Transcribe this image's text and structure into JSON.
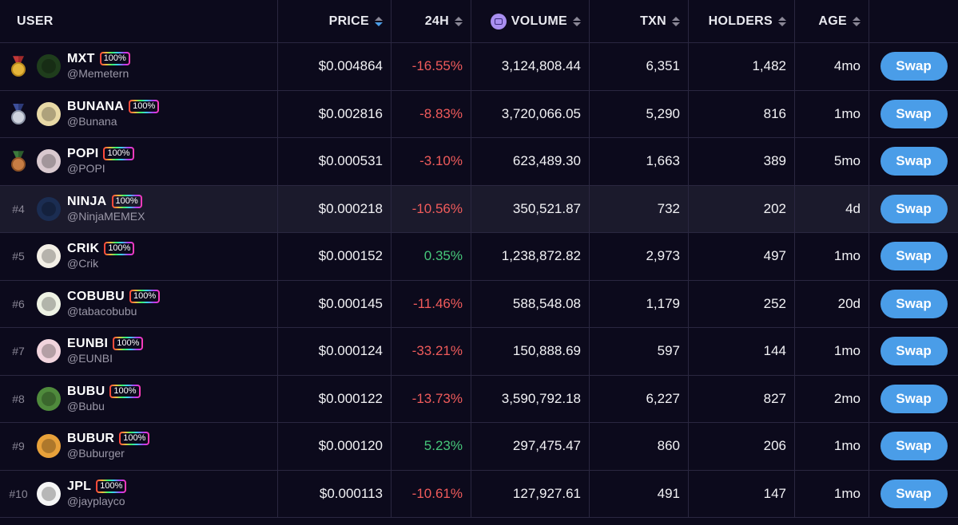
{
  "columns": {
    "user": "USER",
    "price": "PRICE",
    "change": "24H",
    "volume": "VOLUME",
    "txn": "TXN",
    "holders": "HOLDERS",
    "age": "AGE"
  },
  "sort_active": "price",
  "colors": {
    "accent": "#4a9de8",
    "negative": "#f05b5b",
    "positive": "#46c77a",
    "background": "#0c0a1c",
    "highlight_row": "#1b1a2c"
  },
  "rows": [
    {
      "rank": "",
      "medal": "gold-medal-icon",
      "name": "MXT",
      "badge": "100%",
      "handle": "@Memetern",
      "price": "$0.004864",
      "change": "-16.55%",
      "direction": "neg",
      "volume": "3,124,808.44",
      "txn": "6,351",
      "holders": "1,482",
      "age": "4mo",
      "action": "Swap",
      "avatar_color": "#1f3d1c"
    },
    {
      "rank": "",
      "medal": "silver-medal-icon",
      "name": "BUNANA",
      "badge": "100%",
      "handle": "@Bunana",
      "price": "$0.002816",
      "change": "-8.83%",
      "direction": "neg",
      "volume": "3,720,066.05",
      "txn": "5,290",
      "holders": "816",
      "age": "1mo",
      "action": "Swap",
      "avatar_color": "#e8d9a6"
    },
    {
      "rank": "",
      "medal": "bronze-medal-icon",
      "name": "POPI",
      "badge": "100%",
      "handle": "@POPI",
      "price": "$0.000531",
      "change": "-3.10%",
      "direction": "neg",
      "volume": "623,489.30",
      "txn": "1,663",
      "holders": "389",
      "age": "5mo",
      "action": "Swap",
      "avatar_color": "#d9c9cf"
    },
    {
      "rank": "#4",
      "medal": "",
      "name": "NINJA",
      "badge": "100%",
      "handle": "@NinjaMEMEX",
      "price": "$0.000218",
      "change": "-10.56%",
      "direction": "neg",
      "volume": "350,521.87",
      "txn": "732",
      "holders": "202",
      "age": "4d",
      "action": "Swap",
      "avatar_color": "#1b2d52",
      "highlight": true
    },
    {
      "rank": "#5",
      "medal": "",
      "name": "CRIK",
      "badge": "100%",
      "handle": "@Crik",
      "price": "$0.000152",
      "change": "0.35%",
      "direction": "pos",
      "volume": "1,238,872.82",
      "txn": "2,973",
      "holders": "497",
      "age": "1mo",
      "action": "Swap",
      "avatar_color": "#f3efe6"
    },
    {
      "rank": "#6",
      "medal": "",
      "name": "COBUBU",
      "badge": "100%",
      "handle": "@tabacobubu",
      "price": "$0.000145",
      "change": "-11.46%",
      "direction": "neg",
      "volume": "588,548.08",
      "txn": "1,179",
      "holders": "252",
      "age": "20d",
      "action": "Swap",
      "avatar_color": "#eef2e4"
    },
    {
      "rank": "#7",
      "medal": "",
      "name": "EUNBI",
      "badge": "100%",
      "handle": "@EUNBI",
      "price": "$0.000124",
      "change": "-33.21%",
      "direction": "neg",
      "volume": "150,888.69",
      "txn": "597",
      "holders": "144",
      "age": "1mo",
      "action": "Swap",
      "avatar_color": "#f1d4dd"
    },
    {
      "rank": "#8",
      "medal": "",
      "name": "BUBU",
      "badge": "100%",
      "handle": "@Bubu",
      "price": "$0.000122",
      "change": "-13.73%",
      "direction": "neg",
      "volume": "3,590,792.18",
      "txn": "6,227",
      "holders": "827",
      "age": "2mo",
      "action": "Swap",
      "avatar_color": "#4f8a3c"
    },
    {
      "rank": "#9",
      "medal": "",
      "name": "BUBUR",
      "badge": "100%",
      "handle": "@Buburger",
      "price": "$0.000120",
      "change": "5.23%",
      "direction": "pos",
      "volume": "297,475.47",
      "txn": "860",
      "holders": "206",
      "age": "1mo",
      "action": "Swap",
      "avatar_color": "#e8a13a"
    },
    {
      "rank": "#10",
      "medal": "",
      "name": "JPL",
      "badge": "100%",
      "handle": "@jayplayco",
      "price": "$0.000113",
      "change": "-10.61%",
      "direction": "neg",
      "volume": "127,927.61",
      "txn": "491",
      "holders": "147",
      "age": "1mo",
      "action": "Swap",
      "avatar_color": "#f5f5f5"
    }
  ]
}
